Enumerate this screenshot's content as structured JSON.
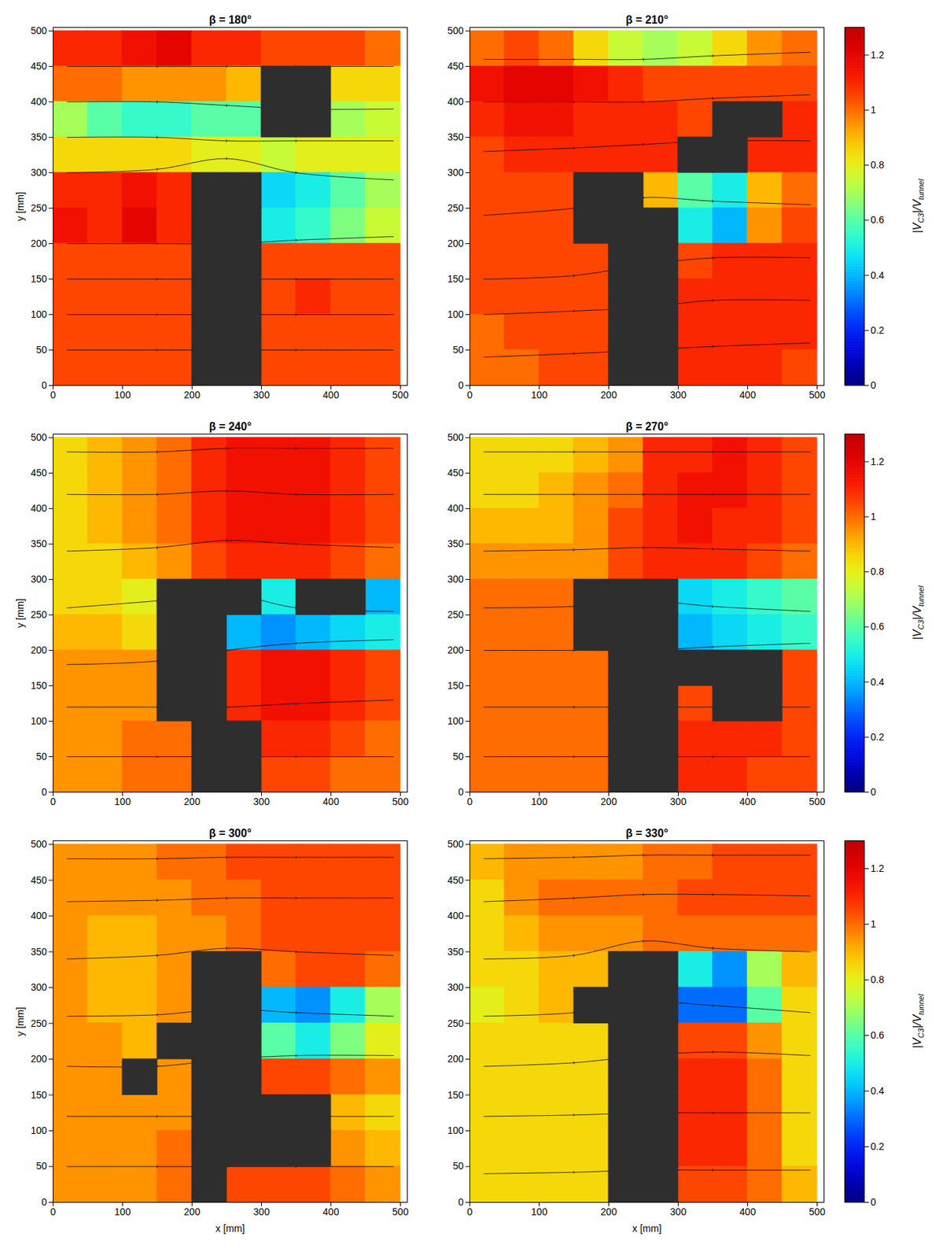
{
  "chart_data": {
    "type": "heatmap",
    "x_label": "x [mm]",
    "y_label": "y [mm]",
    "xlim": [
      0,
      510
    ],
    "ylim": [
      0,
      505
    ],
    "xticks": [
      0,
      100,
      200,
      300,
      400,
      500
    ],
    "yticks": [
      0,
      50,
      100,
      150,
      200,
      250,
      300,
      350,
      400,
      450,
      500
    ],
    "cell_x": [
      25,
      75,
      125,
      175,
      225,
      275,
      325,
      375,
      425,
      475
    ],
    "cell_y": [
      475,
      425,
      375,
      325,
      275,
      225,
      175,
      125,
      75,
      25
    ],
    "streamline_x": [
      20,
      150,
      250,
      350,
      490
    ],
    "marker": "arrow",
    "colorbar": {
      "range": [
        0,
        1.3
      ],
      "ticks": [
        0,
        0.2,
        0.4,
        0.6,
        0.8,
        1,
        1.2
      ],
      "label": [
        {
          "text": "|V"
        },
        {
          "text": "C3",
          "sub": true
        },
        {
          "text": "|/V"
        },
        {
          "text": "tunnel",
          "sub": true
        }
      ]
    },
    "panels": [
      {
        "title": "β = 180°",
        "values": [
          [
            1.1,
            1.1,
            1.15,
            1.2,
            1.1,
            1.1,
            1.05,
            1.05,
            1.05,
            1.0
          ],
          [
            1.0,
            1.0,
            0.95,
            0.95,
            0.95,
            0.9,
            null,
            null,
            0.85,
            0.85
          ],
          [
            0.7,
            0.6,
            0.55,
            0.55,
            0.6,
            0.6,
            null,
            null,
            0.7,
            0.75
          ],
          [
            0.85,
            0.85,
            0.85,
            0.85,
            0.8,
            0.8,
            0.75,
            0.8,
            0.8,
            0.8
          ],
          [
            1.1,
            1.1,
            1.15,
            1.1,
            null,
            null,
            0.45,
            0.5,
            0.6,
            0.7
          ],
          [
            1.15,
            1.1,
            1.2,
            1.1,
            null,
            null,
            0.5,
            0.55,
            0.65,
            0.75
          ],
          [
            1.05,
            1.05,
            1.05,
            1.05,
            null,
            null,
            1.05,
            1.05,
            1.05,
            1.05
          ],
          [
            1.05,
            1.05,
            1.05,
            1.05,
            null,
            null,
            1.05,
            1.1,
            1.05,
            1.05
          ],
          [
            1.05,
            1.05,
            1.05,
            1.05,
            null,
            null,
            1.05,
            1.05,
            1.05,
            1.05
          ],
          [
            1.05,
            1.05,
            1.05,
            1.05,
            null,
            null,
            1.05,
            1.05,
            1.05,
            1.05
          ]
        ],
        "streamlines": [
          [
            50,
            50,
            50,
            50,
            50
          ],
          [
            100,
            100,
            100,
            100,
            100
          ],
          [
            150,
            150,
            150,
            150,
            150
          ],
          [
            200,
            200,
            200,
            205,
            210
          ],
          [
            300,
            305,
            320,
            300,
            290
          ],
          [
            350,
            350,
            345,
            345,
            345
          ],
          [
            400,
            400,
            395,
            390,
            390
          ],
          [
            450,
            450,
            450,
            450,
            450
          ]
        ]
      },
      {
        "title": "β = 210°",
        "values": [
          [
            1.0,
            1.05,
            1.0,
            0.85,
            0.75,
            0.7,
            0.75,
            0.85,
            0.95,
            1.0
          ],
          [
            1.15,
            1.2,
            1.2,
            1.15,
            1.1,
            1.05,
            1.05,
            1.05,
            1.05,
            1.05
          ],
          [
            1.1,
            1.15,
            1.15,
            1.1,
            1.1,
            1.1,
            1.05,
            null,
            null,
            1.1
          ],
          [
            1.05,
            1.1,
            1.1,
            1.1,
            1.1,
            1.1,
            null,
            null,
            1.1,
            1.1
          ],
          [
            1.05,
            1.05,
            1.05,
            null,
            null,
            0.9,
            0.6,
            0.5,
            0.9,
            1.0
          ],
          [
            1.05,
            1.05,
            1.05,
            null,
            null,
            null,
            0.5,
            0.4,
            0.95,
            1.05
          ],
          [
            1.05,
            1.05,
            1.05,
            1.05,
            null,
            null,
            1.05,
            1.1,
            1.1,
            1.1
          ],
          [
            1.05,
            1.05,
            1.05,
            1.05,
            null,
            null,
            1.1,
            1.1,
            1.1,
            1.1
          ],
          [
            1.0,
            1.05,
            1.05,
            1.05,
            null,
            null,
            1.1,
            1.1,
            1.1,
            1.1
          ],
          [
            1.0,
            1.0,
            1.05,
            1.05,
            null,
            null,
            1.1,
            1.1,
            1.1,
            1.05
          ]
        ],
        "streamlines": [
          [
            40,
            45,
            50,
            55,
            60
          ],
          [
            100,
            105,
            110,
            120,
            120
          ],
          [
            150,
            155,
            170,
            180,
            180
          ],
          [
            240,
            250,
            265,
            260,
            255
          ],
          [
            330,
            335,
            340,
            345,
            345
          ],
          [
            400,
            400,
            400,
            405,
            410
          ],
          [
            460,
            460,
            460,
            465,
            470
          ]
        ]
      },
      {
        "title": "β = 240°",
        "values": [
          [
            0.85,
            0.9,
            0.95,
            1.0,
            1.1,
            1.15,
            1.15,
            1.15,
            1.1,
            1.05
          ],
          [
            0.85,
            0.9,
            0.95,
            1.0,
            1.1,
            1.15,
            1.15,
            1.15,
            1.1,
            1.05
          ],
          [
            0.85,
            0.9,
            0.95,
            1.0,
            1.1,
            1.15,
            1.15,
            1.15,
            1.1,
            1.05
          ],
          [
            0.85,
            0.85,
            0.9,
            0.95,
            1.05,
            1.1,
            1.1,
            1.1,
            1.05,
            1.0
          ],
          [
            0.85,
            0.85,
            0.8,
            null,
            null,
            null,
            0.5,
            null,
            null,
            0.4
          ],
          [
            0.9,
            0.9,
            0.85,
            null,
            null,
            0.4,
            0.35,
            0.4,
            0.45,
            0.5
          ],
          [
            0.95,
            0.95,
            0.95,
            null,
            null,
            1.1,
            1.15,
            1.15,
            1.1,
            1.05
          ],
          [
            0.95,
            0.95,
            0.95,
            null,
            null,
            1.1,
            1.15,
            1.15,
            1.1,
            1.05
          ],
          [
            0.95,
            0.95,
            1.0,
            1.0,
            null,
            null,
            1.1,
            1.1,
            1.05,
            1.0
          ],
          [
            0.95,
            0.95,
            1.0,
            1.0,
            null,
            null,
            1.05,
            1.05,
            1.0,
            1.0
          ]
        ],
        "streamlines": [
          [
            50,
            50,
            50,
            50,
            50
          ],
          [
            120,
            120,
            120,
            125,
            130
          ],
          [
            180,
            185,
            200,
            210,
            215
          ],
          [
            260,
            270,
            280,
            260,
            255
          ],
          [
            340,
            345,
            355,
            350,
            345
          ],
          [
            420,
            420,
            425,
            420,
            420
          ],
          [
            480,
            480,
            485,
            485,
            485
          ]
        ]
      },
      {
        "title": "β = 270°",
        "values": [
          [
            0.85,
            0.85,
            0.85,
            0.9,
            0.95,
            1.1,
            1.1,
            1.15,
            1.1,
            1.05
          ],
          [
            0.85,
            0.85,
            0.9,
            0.95,
            1.0,
            1.1,
            1.15,
            1.15,
            1.1,
            1.05
          ],
          [
            0.9,
            0.9,
            0.9,
            0.95,
            1.05,
            1.1,
            1.15,
            1.1,
            1.1,
            1.05
          ],
          [
            0.95,
            0.95,
            0.95,
            0.95,
            1.05,
            1.1,
            1.1,
            1.1,
            1.05,
            1.0
          ],
          [
            1.0,
            1.0,
            1.0,
            null,
            null,
            null,
            0.45,
            0.5,
            0.55,
            0.6
          ],
          [
            1.0,
            1.0,
            1.0,
            null,
            null,
            null,
            0.4,
            0.45,
            0.5,
            0.55
          ],
          [
            1.0,
            1.0,
            1.0,
            1.0,
            null,
            null,
            null,
            null,
            null,
            1.05
          ],
          [
            1.0,
            1.0,
            1.0,
            1.0,
            null,
            null,
            1.05,
            null,
            null,
            1.05
          ],
          [
            1.0,
            1.0,
            1.0,
            1.0,
            null,
            null,
            1.1,
            1.1,
            1.1,
            1.05
          ],
          [
            1.0,
            1.0,
            1.0,
            1.0,
            null,
            null,
            1.1,
            1.1,
            1.05,
            1.05
          ]
        ],
        "streamlines": [
          [
            50,
            50,
            50,
            50,
            50
          ],
          [
            120,
            120,
            120,
            120,
            120
          ],
          [
            200,
            200,
            200,
            205,
            210
          ],
          [
            260,
            262,
            270,
            262,
            255
          ],
          [
            340,
            342,
            345,
            343,
            340
          ],
          [
            420,
            420,
            420,
            420,
            420
          ],
          [
            480,
            480,
            480,
            480,
            480
          ]
        ]
      },
      {
        "title": "β = 300°",
        "values": [
          [
            0.95,
            0.95,
            0.95,
            1.0,
            1.0,
            1.05,
            1.05,
            1.05,
            1.05,
            1.05
          ],
          [
            0.95,
            0.95,
            0.95,
            0.95,
            1.0,
            1.0,
            1.05,
            1.05,
            1.05,
            1.05
          ],
          [
            0.95,
            0.9,
            0.9,
            0.95,
            0.95,
            1.0,
            1.05,
            1.05,
            1.05,
            1.05
          ],
          [
            0.95,
            0.9,
            0.9,
            0.95,
            null,
            null,
            1.0,
            1.05,
            1.05,
            1.0
          ],
          [
            0.95,
            0.9,
            0.9,
            0.95,
            null,
            null,
            0.4,
            0.35,
            0.5,
            0.7
          ],
          [
            0.95,
            0.95,
            0.9,
            null,
            null,
            null,
            0.6,
            0.5,
            0.65,
            0.8
          ],
          [
            0.95,
            0.95,
            null,
            0.95,
            null,
            null,
            1.05,
            1.05,
            1.0,
            0.95
          ],
          [
            0.95,
            0.95,
            0.95,
            0.95,
            null,
            null,
            null,
            null,
            0.9,
            0.85
          ],
          [
            0.95,
            0.95,
            0.95,
            1.0,
            null,
            null,
            null,
            null,
            0.95,
            0.9
          ],
          [
            0.95,
            0.95,
            0.95,
            1.0,
            null,
            1.05,
            1.05,
            1.05,
            1.0,
            0.95
          ]
        ],
        "streamlines": [
          [
            50,
            50,
            50,
            50,
            50
          ],
          [
            120,
            120,
            120,
            120,
            120
          ],
          [
            190,
            190,
            200,
            205,
            205
          ],
          [
            260,
            262,
            270,
            265,
            260
          ],
          [
            340,
            345,
            355,
            350,
            345
          ],
          [
            420,
            422,
            425,
            425,
            425
          ],
          [
            480,
            480,
            482,
            482,
            482
          ]
        ]
      },
      {
        "title": "β = 330°",
        "values": [
          [
            0.9,
            0.95,
            0.95,
            0.95,
            0.95,
            1.0,
            1.0,
            1.05,
            1.05,
            1.05
          ],
          [
            0.85,
            0.95,
            1.0,
            1.0,
            1.0,
            1.0,
            1.05,
            1.05,
            1.05,
            1.05
          ],
          [
            0.85,
            0.9,
            0.95,
            0.95,
            0.95,
            1.0,
            1.0,
            1.0,
            1.0,
            1.0
          ],
          [
            0.85,
            0.85,
            0.9,
            0.9,
            null,
            null,
            0.5,
            0.35,
            0.7,
            0.9
          ],
          [
            0.8,
            0.85,
            0.9,
            null,
            null,
            null,
            0.3,
            0.3,
            0.6,
            0.85
          ],
          [
            0.85,
            0.85,
            0.85,
            0.85,
            null,
            null,
            1.05,
            1.05,
            0.95,
            0.85
          ],
          [
            0.85,
            0.85,
            0.85,
            0.85,
            null,
            null,
            1.1,
            1.1,
            1.0,
            0.85
          ],
          [
            0.85,
            0.85,
            0.85,
            0.85,
            null,
            null,
            1.1,
            1.1,
            1.0,
            0.85
          ],
          [
            0.85,
            0.85,
            0.85,
            0.85,
            null,
            null,
            1.1,
            1.1,
            1.0,
            0.85
          ],
          [
            0.85,
            0.85,
            0.85,
            0.85,
            null,
            null,
            1.05,
            1.05,
            1.0,
            0.9
          ]
        ],
        "streamlines": [
          [
            40,
            42,
            45,
            45,
            45
          ],
          [
            120,
            122,
            125,
            125,
            125
          ],
          [
            190,
            195,
            205,
            210,
            205
          ],
          [
            260,
            265,
            280,
            275,
            265
          ],
          [
            340,
            345,
            365,
            355,
            350
          ],
          [
            420,
            425,
            430,
            430,
            428
          ],
          [
            480,
            482,
            485,
            485,
            485
          ]
        ]
      }
    ]
  }
}
